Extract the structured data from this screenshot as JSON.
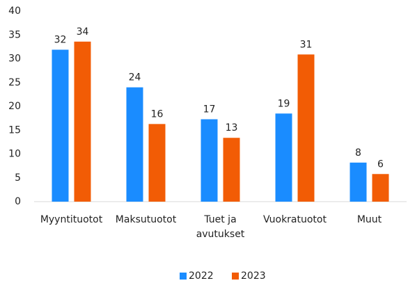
{
  "chart_data": {
    "type": "bar",
    "categories": [
      "Myyntituotot",
      "Maksutuotot",
      "Tuet ja avutukset",
      "Vuokratuotot",
      "Muut"
    ],
    "series": [
      {
        "name": "2022",
        "color": "#1a8cff",
        "values": [
          31.9,
          24.0,
          17.3,
          18.5,
          8.2
        ],
        "value_labels": [
          "32",
          "24",
          "17",
          "19",
          "8"
        ]
      },
      {
        "name": "2023",
        "color": "#f25c05",
        "values": [
          33.6,
          16.3,
          13.4,
          30.9,
          5.8
        ],
        "value_labels": [
          "34",
          "16",
          "13",
          "31",
          "6"
        ]
      }
    ],
    "ylim": [
      0,
      40
    ],
    "yticks": [
      0,
      5,
      10,
      15,
      20,
      25,
      30,
      35,
      40
    ],
    "grid": false,
    "legend": "bottom"
  }
}
